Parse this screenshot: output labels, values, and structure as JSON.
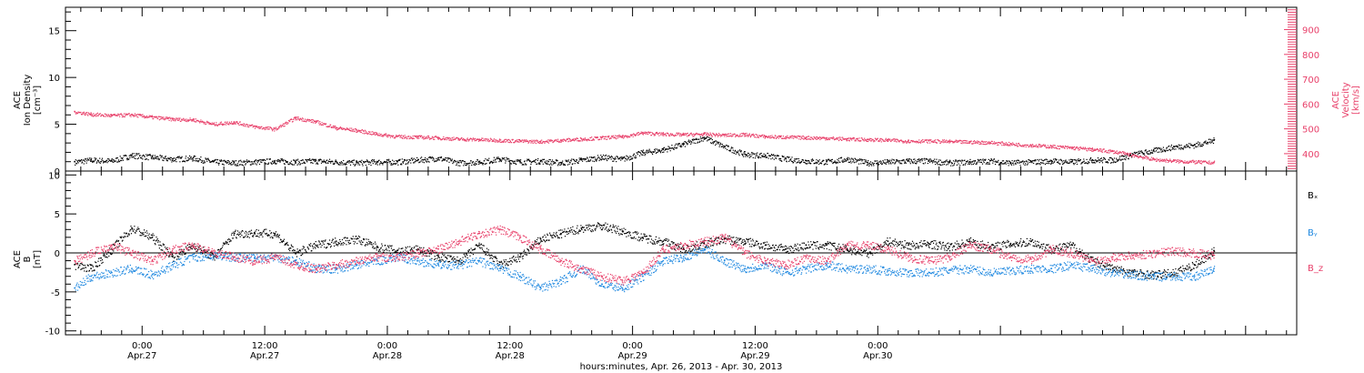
{
  "chart_data": [
    {
      "type": "scatter",
      "panel": "top",
      "ylabel_left": [
        "ACE",
        "Ion Density",
        "[cm⁻³]"
      ],
      "ylabel_right": [
        "ACE",
        "Velocity",
        "[km/s]"
      ],
      "ylim_left": [
        0,
        17.5
      ],
      "ylim_right": [
        330,
        990
      ],
      "yticks_left": [
        0,
        5,
        10,
        15
      ],
      "yticks_right": [
        400,
        500,
        600,
        700,
        800,
        900
      ],
      "right_axis_color": "#e8406a",
      "x_hours": [
        -6.6,
        -5,
        -3,
        -1,
        1,
        3,
        5,
        7,
        9,
        11,
        13,
        15,
        17,
        19,
        21,
        23,
        25,
        27,
        29,
        31,
        33,
        35,
        37,
        39,
        41,
        43,
        45,
        47,
        49,
        51,
        53,
        55,
        57,
        59,
        61,
        63,
        65,
        67,
        69,
        71,
        73,
        75,
        77,
        79,
        81,
        83,
        85,
        87,
        89,
        91,
        93,
        95,
        97,
        99,
        101,
        103,
        104.9
      ],
      "series": [
        {
          "name": "Ion Density",
          "axis": "left",
          "color": "#000000",
          "values": [
            1.0,
            1.2,
            1.1,
            1.7,
            1.5,
            1.3,
            1.4,
            1.0,
            0.9,
            1.0,
            1.1,
            1.0,
            1.1,
            1.0,
            0.9,
            1.0,
            1.0,
            1.2,
            1.4,
            0.9,
            1.0,
            1.3,
            1.0,
            1.1,
            0.9,
            1.2,
            1.5,
            1.3,
            2.0,
            2.3,
            2.9,
            3.6,
            2.6,
            1.8,
            1.7,
            1.3,
            1.1,
            1.0,
            1.3,
            0.9,
            1.0,
            1.1,
            1.1,
            0.9,
            1.0,
            1.1,
            0.9,
            1.0,
            1.1,
            1.0,
            1.2,
            1.2,
            1.8,
            2.2,
            2.6,
            2.8,
            3.3
          ]
        },
        {
          "name": "Velocity",
          "axis": "right",
          "color": "#e8406a",
          "values": [
            570,
            560,
            555,
            558,
            548,
            540,
            538,
            520,
            528,
            510,
            500,
            545,
            530,
            505,
            495,
            480,
            470,
            468,
            465,
            460,
            458,
            455,
            452,
            450,
            455,
            460,
            465,
            470,
            485,
            480,
            478,
            480,
            476,
            478,
            470,
            468,
            466,
            464,
            460,
            458,
            456,
            452,
            452,
            450,
            448,
            446,
            440,
            435,
            430,
            425,
            418,
            410,
            395,
            378,
            372,
            368,
            365
          ]
        }
      ]
    },
    {
      "type": "scatter",
      "panel": "bottom",
      "ylabel": [
        "ACE",
        "B",
        "[nT]"
      ],
      "ylim": [
        -10.5,
        10.5
      ],
      "yticks": [
        -10,
        -5,
        0,
        5,
        10
      ],
      "x_hours": [
        -6.6,
        -5,
        -3,
        -1,
        1,
        3,
        5,
        7,
        9,
        11,
        13,
        15,
        17,
        19,
        21,
        23,
        25,
        27,
        29,
        31,
        33,
        35,
        37,
        39,
        41,
        43,
        45,
        47,
        49,
        51,
        53,
        55,
        57,
        59,
        61,
        63,
        65,
        67,
        69,
        71,
        73,
        75,
        77,
        79,
        81,
        83,
        85,
        87,
        89,
        91,
        93,
        95,
        97,
        99,
        101,
        103,
        104.9
      ],
      "series": [
        {
          "name": "Bₓ",
          "color": "#000000",
          "values": [
            -1.5,
            -2.0,
            0.5,
            3.2,
            2.0,
            -0.5,
            1.0,
            -0.5,
            2.5,
            2.6,
            2.5,
            0.0,
            1.0,
            1.5,
            1.8,
            0.8,
            0.3,
            0.5,
            -0.5,
            -1.0,
            1.0,
            -1.5,
            -0.5,
            1.8,
            2.5,
            3.2,
            3.5,
            2.8,
            2.0,
            1.5,
            0.5,
            1.2,
            1.8,
            1.5,
            1.0,
            0.5,
            1.0,
            1.0,
            0.5,
            0.0,
            1.5,
            1.0,
            1.2,
            0.8,
            1.5,
            0.8,
            1.2,
            1.5,
            0.5,
            1.0,
            -1.0,
            -2.0,
            -2.5,
            -2.8,
            -2.5,
            -1.5,
            0.3
          ]
        },
        {
          "name": "Bᵧ",
          "color": "#1e88e0",
          "values": [
            -4.5,
            -3.0,
            -2.5,
            -2.0,
            -2.8,
            -1.5,
            -0.5,
            -0.3,
            -0.5,
            -0.6,
            -0.5,
            -1.0,
            -2.0,
            -2.0,
            -1.5,
            -1.0,
            -0.5,
            -1.0,
            -1.5,
            -1.5,
            -1.0,
            -2.0,
            -3.0,
            -4.5,
            -3.5,
            -2.0,
            -4.0,
            -4.5,
            -3.0,
            -1.0,
            -0.5,
            0.5,
            -1.0,
            -2.0,
            -1.5,
            -2.5,
            -2.0,
            -1.5,
            -2.0,
            -2.0,
            -2.3,
            -2.5,
            -2.5,
            -2.2,
            -2.0,
            -2.5,
            -2.3,
            -2.0,
            -2.0,
            -1.5,
            -2.0,
            -2.5,
            -2.8,
            -3.0,
            -3.0,
            -3.0,
            -2.0
          ]
        },
        {
          "name": "B_z",
          "color": "#e8406a",
          "values": [
            -1.0,
            0.0,
            1.0,
            0.0,
            -1.0,
            0.5,
            1.0,
            0.0,
            -0.5,
            -1.0,
            -0.5,
            -1.5,
            -2.0,
            -1.5,
            -1.0,
            -0.5,
            -0.5,
            0.0,
            0.5,
            1.5,
            2.5,
            3.0,
            2.0,
            0.5,
            -1.0,
            -2.0,
            -3.0,
            -3.5,
            -2.5,
            0.5,
            1.0,
            1.5,
            2.0,
            0.0,
            -1.0,
            -1.5,
            -0.5,
            -1.0,
            1.0,
            1.0,
            0.5,
            -0.5,
            -1.0,
            -0.5,
            1.0,
            0.5,
            -0.5,
            -0.8,
            0.5,
            0.0,
            -1.0,
            -0.5,
            -0.3,
            0.0,
            0.3,
            0.0,
            -0.3
          ]
        }
      ]
    }
  ],
  "x_axis": {
    "title": "hours:minutes, Apr. 26, 2013 - Apr. 30, 2013",
    "range_hours": [
      -7.5,
      113
    ],
    "ticks": [
      {
        "hour": 0,
        "time": "0:00",
        "date": "Apr.27"
      },
      {
        "hour": 12,
        "time": "12:00",
        "date": "Apr.27"
      },
      {
        "hour": 24,
        "time": "0:00",
        "date": "Apr.28"
      },
      {
        "hour": 36,
        "time": "12:00",
        "date": "Apr.28"
      },
      {
        "hour": 48,
        "time": "0:00",
        "date": "Apr.29"
      },
      {
        "hour": 60,
        "time": "12:00",
        "date": "Apr.29"
      },
      {
        "hour": 72,
        "time": "0:00",
        "date": "Apr.30"
      }
    ]
  },
  "legend": {
    "placement": "right",
    "entries": [
      "Bₓ",
      "Bᵧ",
      "B_z"
    ]
  }
}
